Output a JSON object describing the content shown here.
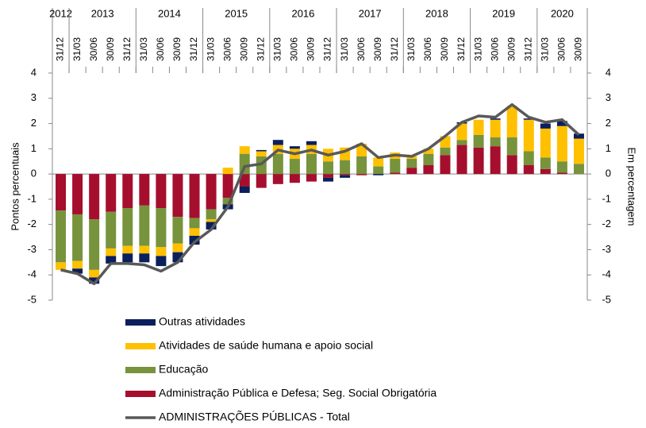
{
  "chart_data": {
    "type": "bar",
    "stacked": true,
    "y_label": "Pontos percentuais",
    "y2_label": "Em percentagem",
    "categories": [
      "31/12",
      "31/03",
      "30/06",
      "30/09",
      "31/12",
      "31/03",
      "30/06",
      "30/09",
      "31/12",
      "31/03",
      "30/06",
      "30/09",
      "31/12",
      "31/03",
      "30/06",
      "30/09",
      "31/12",
      "31/03",
      "30/06",
      "30/09",
      "31/12",
      "31/03",
      "30/06",
      "30/09",
      "31/12",
      "31/03",
      "30/06",
      "30/09",
      "31/12",
      "31/03",
      "30/06",
      "30/09"
    ],
    "years": [
      {
        "label": "2012",
        "span": 1
      },
      {
        "label": "2013",
        "span": 4
      },
      {
        "label": "2014",
        "span": 4
      },
      {
        "label": "2015",
        "span": 4
      },
      {
        "label": "2016",
        "span": 4
      },
      {
        "label": "2017",
        "span": 4
      },
      {
        "label": "2018",
        "span": 4
      },
      {
        "label": "2019",
        "span": 4
      },
      {
        "label": "2020",
        "span": 3
      }
    ],
    "series": [
      {
        "name": "Administração Pública e Defesa; Seg. Social Obrigatória",
        "color": "#a50f2d",
        "type": "bar",
        "values": [
          -1.45,
          -1.6,
          -1.8,
          -1.5,
          -1.35,
          -1.25,
          -1.35,
          -1.7,
          -1.75,
          -1.4,
          -0.95,
          -0.5,
          -0.55,
          -0.4,
          -0.35,
          -0.3,
          -0.15,
          -0.05,
          -0.05,
          0,
          0.05,
          0.25,
          0.35,
          0.75,
          1.15,
          1.05,
          1.1,
          0.75,
          0.35,
          0.2,
          0.05,
          0
        ]
      },
      {
        "name": "Educação",
        "color": "#77933c",
        "type": "bar",
        "values": [
          -2.05,
          -1.85,
          -2.0,
          -1.45,
          -1.5,
          -1.6,
          -1.55,
          -1.05,
          -0.4,
          -0.4,
          -0.25,
          0.8,
          0.7,
          0.8,
          0.6,
          0.8,
          0.5,
          0.55,
          0.7,
          0.3,
          0.55,
          0.35,
          0.45,
          0.3,
          0.2,
          0.5,
          0.35,
          0.7,
          0.55,
          0.45,
          0.45,
          0.4
        ]
      },
      {
        "name": "Atividades de saúde humana e apoio social",
        "color": "#ffc000",
        "type": "bar",
        "values": [
          -0.3,
          -0.3,
          -0.3,
          -0.3,
          -0.3,
          -0.3,
          -0.35,
          -0.35,
          -0.3,
          -0.1,
          0.25,
          0.3,
          0.2,
          0.35,
          0.4,
          0.35,
          0.5,
          0.5,
          0.5,
          0.35,
          0.25,
          0.1,
          0.2,
          0.45,
          0.65,
          0.6,
          0.7,
          1.25,
          1.25,
          1.15,
          1.4,
          1.0
        ]
      },
      {
        "name": "Outras atividades",
        "color": "#0a1f5c",
        "type": "bar",
        "values": [
          0,
          -0.2,
          -0.25,
          -0.3,
          -0.35,
          -0.35,
          -0.4,
          -0.4,
          -0.35,
          -0.3,
          -0.2,
          -0.25,
          0.05,
          0.2,
          0.1,
          0.15,
          -0.15,
          -0.1,
          0,
          -0.05,
          0,
          0,
          0,
          0,
          0.05,
          0,
          0.05,
          0,
          0.05,
          0.2,
          0.2,
          0.2
        ]
      },
      {
        "name": "ADMINISTRAÇÕES PÚBLICAS - Total",
        "color": "#595959",
        "type": "line",
        "values": [
          -3.8,
          -3.95,
          -4.35,
          -3.55,
          -3.55,
          -3.6,
          -3.85,
          -3.5,
          -2.7,
          -2.2,
          -1.3,
          0.3,
          0.4,
          0.95,
          0.8,
          0.95,
          0.75,
          0.9,
          1.2,
          0.65,
          0.75,
          0.7,
          1.0,
          1.5,
          2.05,
          2.3,
          2.25,
          2.75,
          2.25,
          2.05,
          2.15,
          1.55
        ]
      }
    ],
    "ylim": [
      -5,
      4
    ],
    "yticks": [
      -5,
      -4,
      -3,
      -2,
      -1,
      0,
      1,
      2,
      3,
      4
    ],
    "y2lim": [
      -5,
      4
    ],
    "y2ticks": [
      -5,
      -4,
      -3,
      -2,
      -1,
      0,
      1,
      2,
      3,
      4
    ]
  }
}
